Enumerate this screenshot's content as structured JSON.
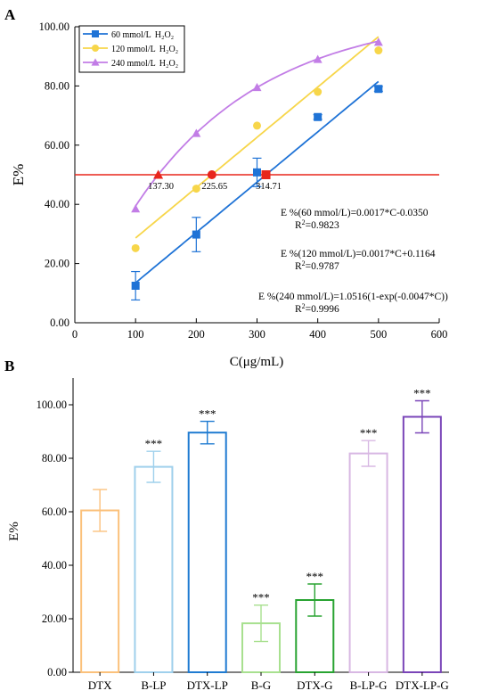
{
  "chart_data": [
    {
      "panel": "A",
      "type": "scatter",
      "xlabel": "C(μg/mL)",
      "ylabel": "E%",
      "xlim": [
        0,
        600
      ],
      "ylim": [
        0,
        100
      ],
      "xticks": [
        "0",
        "100",
        "200",
        "300",
        "400",
        "500",
        "600"
      ],
      "yticks": [
        "0.00",
        "20.00",
        "40.00",
        "60.00",
        "80.00",
        "100.00"
      ],
      "grid": false,
      "legend": "top-left",
      "reference_line": {
        "y": 50,
        "color": "#e8261c"
      },
      "series": [
        {
          "name_main": "60 mmol/L",
          "name_tail": "H₂O₂",
          "color": "#1f73d6",
          "marker": "square",
          "x": [
            100,
            200,
            300,
            400,
            500
          ],
          "y": [
            12.5,
            29.8,
            50.8,
            69.5,
            79.0
          ],
          "err": [
            4.8,
            5.8,
            4.8,
            0.8,
            0.8
          ],
          "fit": {
            "type": "linear",
            "a": 0.0017,
            "b": -0.035,
            "range": [
              100,
              500
            ]
          }
        },
        {
          "name_main": "120 mmol/L",
          "name_tail": "H₂O₂",
          "color": "#f7d64a",
          "marker": "circle",
          "x": [
            100,
            200,
            300,
            400,
            500
          ],
          "y": [
            25.2,
            45.3,
            66.6,
            78.0,
            92.0
          ],
          "err": [
            0,
            0,
            0,
            0,
            0
          ],
          "fit": {
            "type": "linear",
            "a": 0.0017,
            "b": 0.1164,
            "range": [
              100,
              500
            ]
          }
        },
        {
          "name_main": "240 mmol/L",
          "name_tail": "H₂O₂",
          "color": "#c27de6",
          "marker": "triangle",
          "x": [
            100,
            200,
            300,
            400,
            500
          ],
          "y": [
            38.5,
            64.0,
            79.5,
            89.0,
            94.8
          ],
          "err": [
            0,
            0,
            0,
            0,
            0
          ],
          "fit": {
            "type": "exp",
            "k": 1.0516,
            "r": 0.0047,
            "range": [
              100,
              500
            ]
          }
        }
      ],
      "intersections": [
        {
          "x": 137.3,
          "label": "137.30",
          "marker": "triangle"
        },
        {
          "x": 225.65,
          "label": "225.65",
          "marker": "circle"
        },
        {
          "x": 314.71,
          "label": "314.71",
          "marker": "square"
        }
      ],
      "equations": [
        {
          "eq": "E %(60 mmol/L)=0.0017*C-0.0350",
          "r2": "=0.9823"
        },
        {
          "eq": "E %(120 mmol/L)=0.0017*C+0.1164",
          "r2": "=0.9787"
        },
        {
          "eq": "E %(240 mmol/L)=1.0516(1-exp(-0.0047*C))",
          "r2": "=0.9996"
        }
      ]
    },
    {
      "panel": "B",
      "type": "bar",
      "ylabel": "E%",
      "ylim": [
        0,
        110
      ],
      "yticks": [
        "0.00",
        "20.00",
        "40.00",
        "60.00",
        "80.00",
        "100.00"
      ],
      "categories": [
        "DTX",
        "B-LP",
        "DTX-LP",
        "B-G",
        "DTX-G",
        "B-LP-G",
        "DTX-LP-G"
      ],
      "values": [
        60.5,
        76.8,
        89.6,
        18.3,
        27.0,
        81.8,
        95.5
      ],
      "errors": [
        7.8,
        5.8,
        4.2,
        6.8,
        6.0,
        4.8,
        6.0
      ],
      "significance": [
        "",
        "***",
        "***",
        "***",
        "***",
        "***",
        "***"
      ],
      "colors": [
        "#fbc17b",
        "#9fd0ec",
        "#1f7bd1",
        "#a8e08f",
        "#28a331",
        "#d8b8e3",
        "#7a45b8"
      ]
    }
  ]
}
